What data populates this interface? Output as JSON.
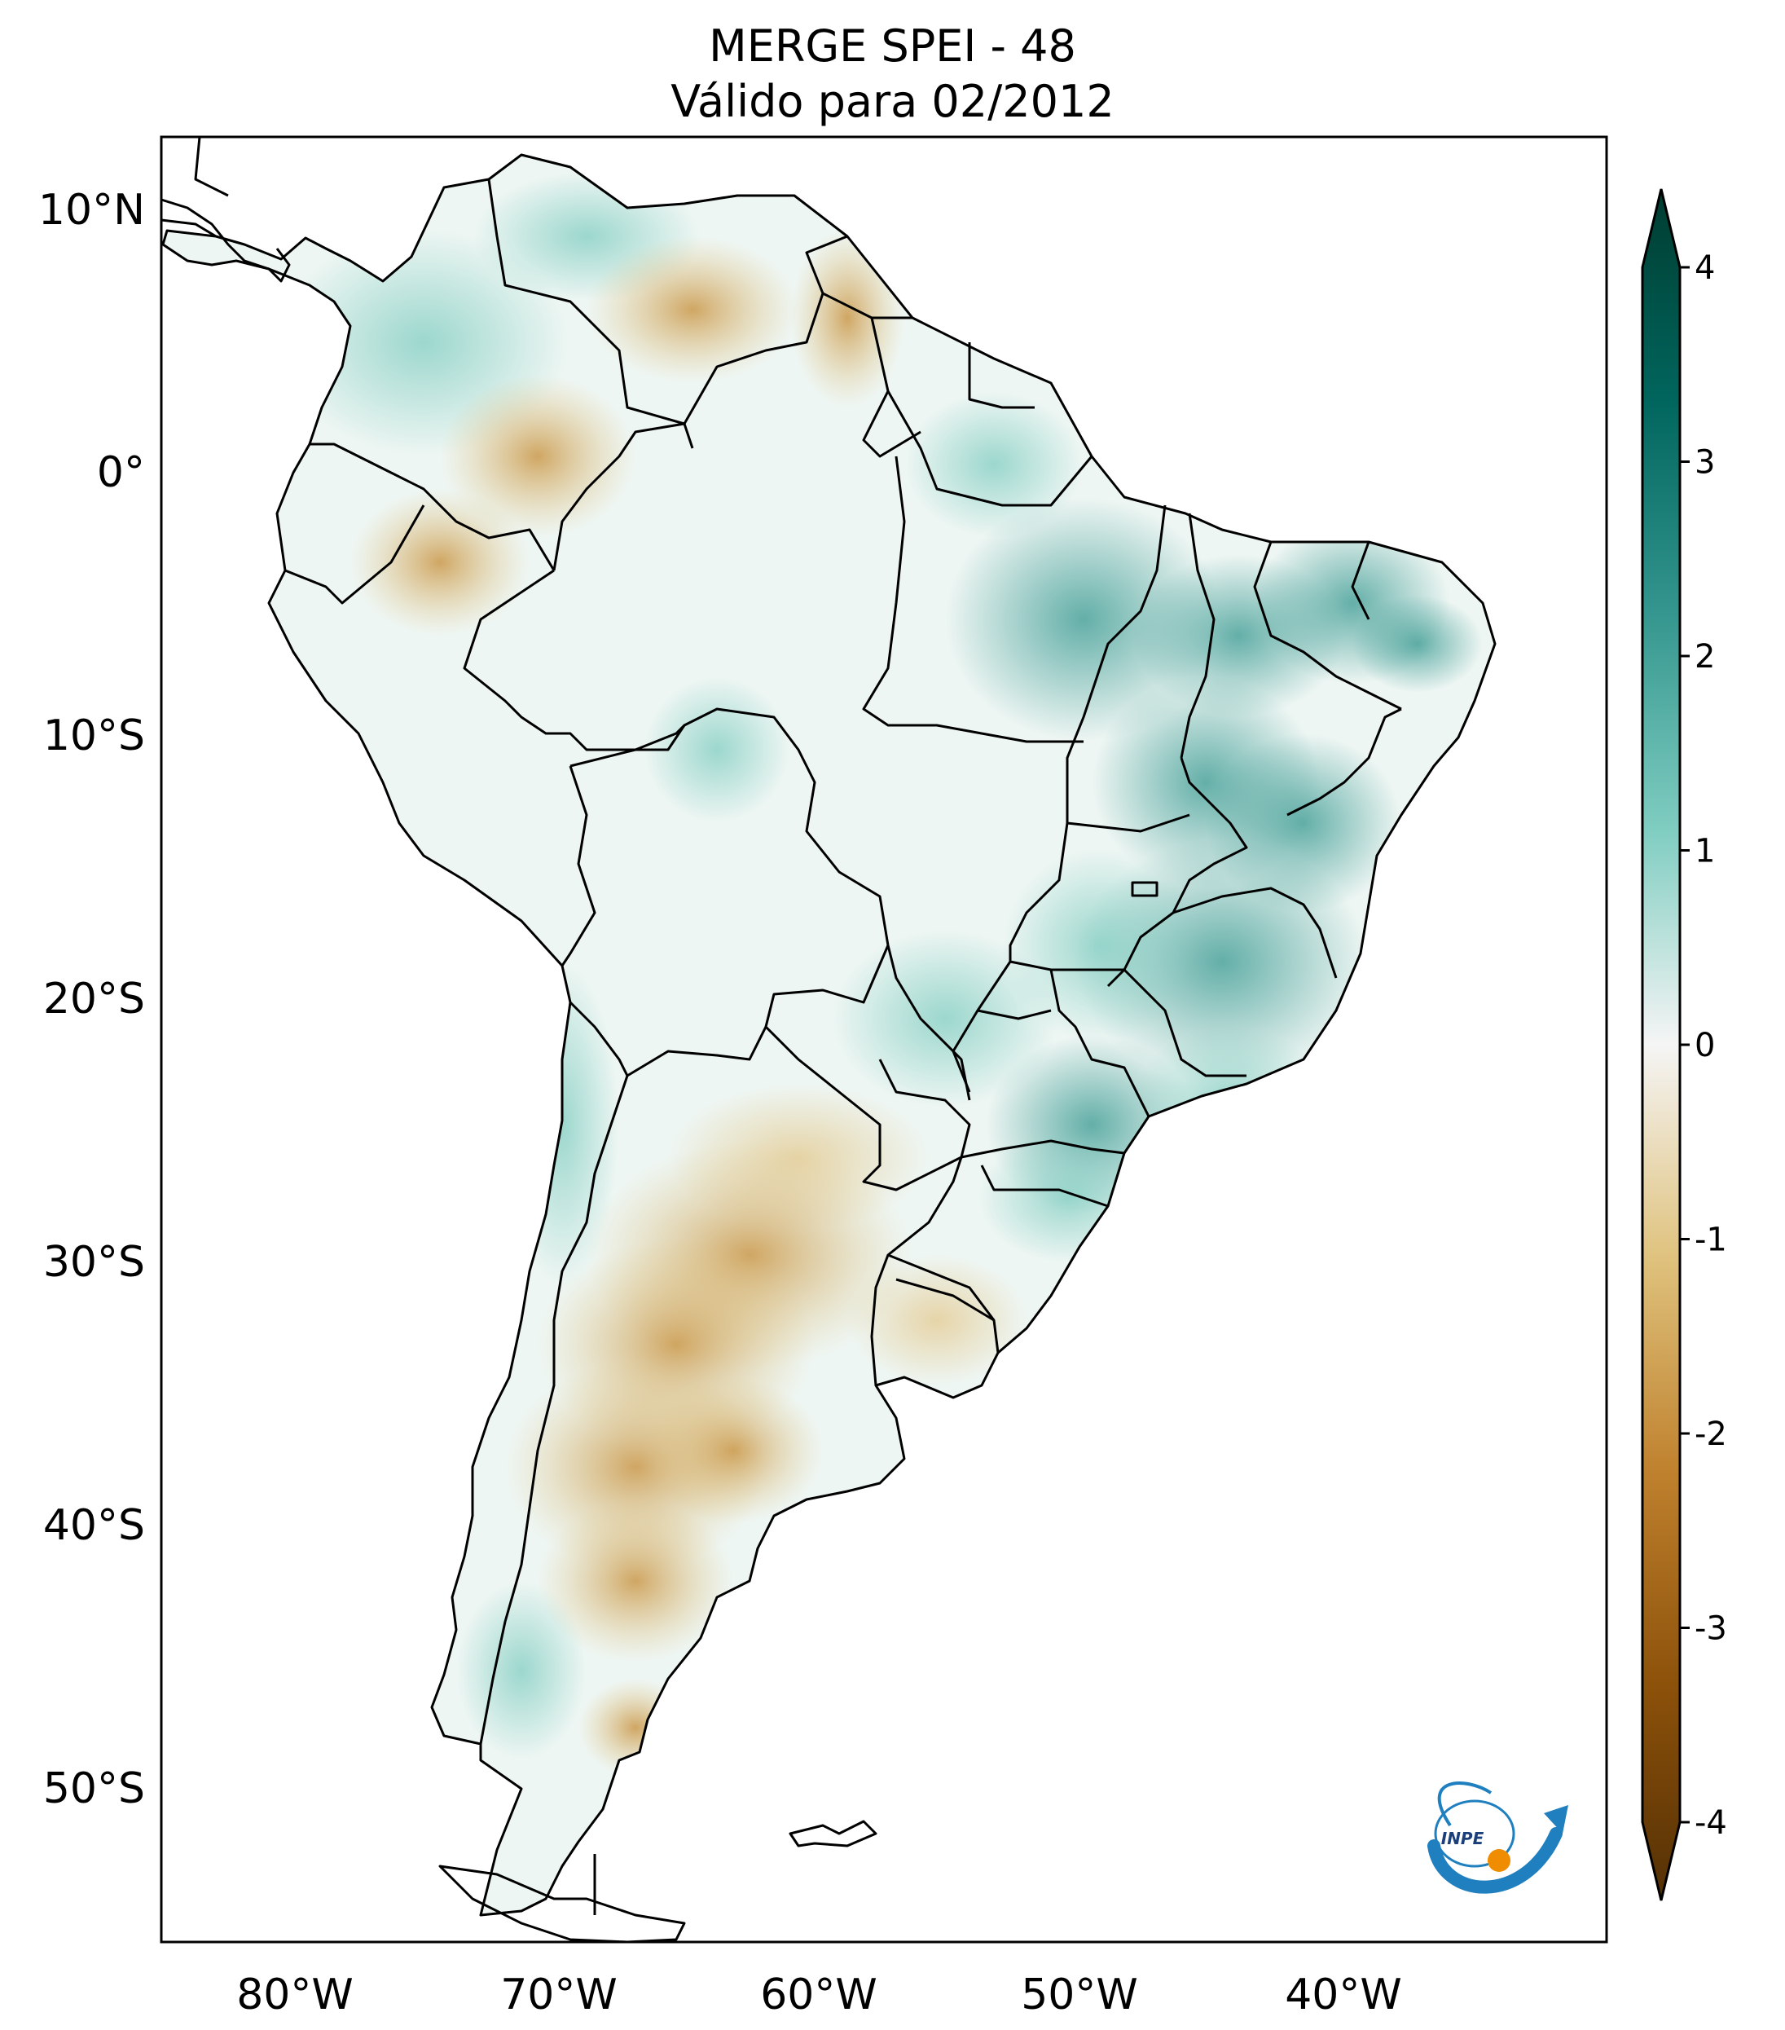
{
  "title": {
    "line1": "MERGE   SPEI - 48",
    "line2": "Válido para 02/2012"
  },
  "map": {
    "region": "South America",
    "lat_labels": [
      "10°N",
      "0°",
      "10°S",
      "20°S",
      "30°S",
      "40°S",
      "50°S"
    ],
    "lon_labels": [
      "80°W",
      "70°W",
      "60°W",
      "50°W",
      "40°W"
    ]
  },
  "colorbar": {
    "min": -4,
    "max": 4,
    "tick_labels": [
      "4",
      "3",
      "2",
      "1",
      "0",
      "-1",
      "-2",
      "-3",
      "-4"
    ],
    "colors": {
      "wettest": "#003c30",
      "wet": "#35978f",
      "neutral": "#f5f5f5",
      "dry": "#dfc27d",
      "driest": "#543005"
    }
  },
  "logo": {
    "text": "INPE"
  }
}
